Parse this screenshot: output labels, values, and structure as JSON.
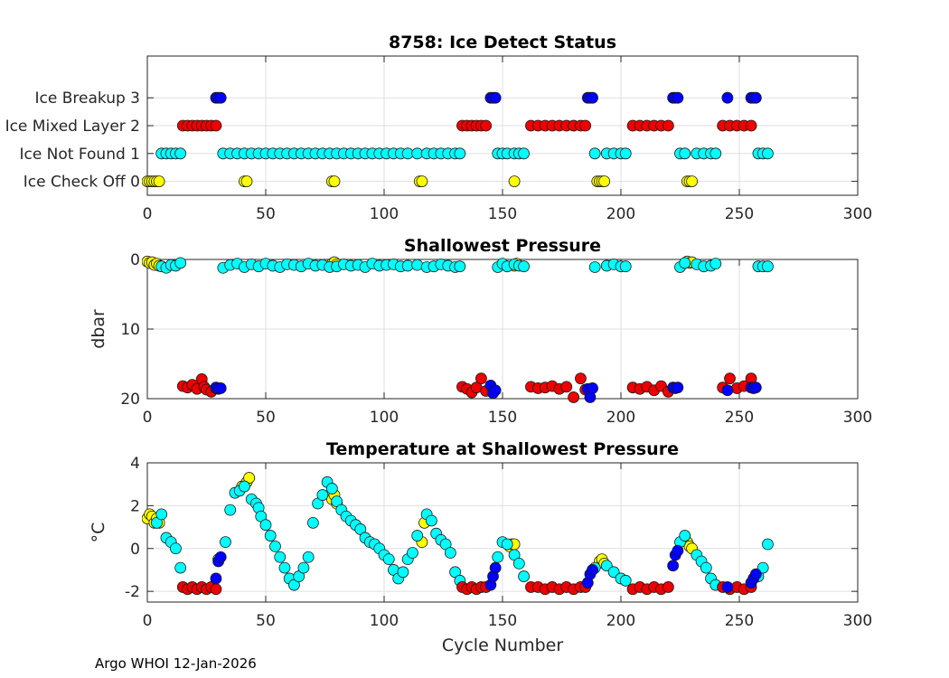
{
  "figure": {
    "footer": "Argo WHOI 12-Jan-2026"
  },
  "colors": {
    "0": "#ffff00",
    "1": "#00ffff",
    "2": "#ee0000",
    "3": "#0000ff"
  },
  "chart_data": [
    {
      "type": "scatter",
      "title": "8758: Ice Detect Status",
      "xlabel": "",
      "ylabel": "",
      "xlim": [
        0,
        300
      ],
      "ylim": [
        -0.5,
        4.5
      ],
      "xticks": [
        0,
        50,
        100,
        150,
        200,
        250,
        300
      ],
      "xtick_labels": [
        "0",
        "50",
        "100",
        "150",
        "200",
        "250",
        "300"
      ],
      "yticks": [
        0,
        1,
        2,
        3
      ],
      "ytick_labels": [
        "Ice Check Off 0",
        "Ice Not Found 1",
        "Ice Mixed Layer 2",
        "Ice Breakup 3"
      ],
      "series": [
        {
          "name": "Ice Check Off 0",
          "color_key": "0",
          "x": [
            0,
            1,
            2,
            3,
            4,
            5,
            41,
            42,
            78,
            79,
            115,
            116,
            155,
            190,
            191,
            192,
            193,
            228,
            229,
            230
          ],
          "y": [
            0,
            0,
            0,
            0,
            0,
            0,
            0,
            0,
            0,
            0,
            0,
            0,
            0,
            0,
            0,
            0,
            0,
            0,
            0,
            0
          ]
        },
        {
          "name": "Ice Not Found 1",
          "color_key": "1",
          "x": [
            6,
            8,
            10,
            12,
            14,
            32,
            35,
            38,
            41,
            44,
            47,
            50,
            53,
            56,
            59,
            62,
            65,
            68,
            71,
            74,
            77,
            80,
            83,
            86,
            89,
            92,
            95,
            98,
            101,
            104,
            107,
            110,
            114,
            118,
            121,
            124,
            127,
            130,
            132,
            148,
            150,
            152,
            155,
            157,
            159,
            189,
            194,
            197,
            200,
            202,
            225,
            227,
            232,
            235,
            238,
            240,
            258,
            260,
            262
          ],
          "y": [
            1,
            1,
            1,
            1,
            1,
            1,
            1,
            1,
            1,
            1,
            1,
            1,
            1,
            1,
            1,
            1,
            1,
            1,
            1,
            1,
            1,
            1,
            1,
            1,
            1,
            1,
            1,
            1,
            1,
            1,
            1,
            1,
            1,
            1,
            1,
            1,
            1,
            1,
            1,
            1,
            1,
            1,
            1,
            1,
            1,
            1,
            1,
            1,
            1,
            1,
            1,
            1,
            1,
            1,
            1,
            1,
            1,
            1,
            1
          ]
        },
        {
          "name": "Ice Mixed Layer 2",
          "color_key": "2",
          "x": [
            15,
            17,
            19,
            21,
            23,
            25,
            27,
            29,
            133,
            135,
            137,
            139,
            141,
            143,
            162,
            165,
            168,
            171,
            174,
            177,
            180,
            183,
            185,
            205,
            208,
            211,
            214,
            217,
            220,
            243,
            246,
            249,
            252,
            255
          ],
          "y": [
            2,
            2,
            2,
            2,
            2,
            2,
            2,
            2,
            2,
            2,
            2,
            2,
            2,
            2,
            2,
            2,
            2,
            2,
            2,
            2,
            2,
            2,
            2,
            2,
            2,
            2,
            2,
            2,
            2,
            2,
            2,
            2,
            2,
            2
          ]
        },
        {
          "name": "Ice Breakup 3",
          "color_key": "3",
          "x": [
            29,
            30,
            31,
            145,
            146,
            147,
            186,
            187,
            188,
            222,
            223,
            224,
            245,
            255,
            256,
            257
          ],
          "y": [
            3,
            3,
            3,
            3,
            3,
            3,
            3,
            3,
            3,
            3,
            3,
            3,
            3,
            3,
            3,
            3
          ]
        }
      ]
    },
    {
      "type": "scatter",
      "title": "Shallowest Pressure",
      "xlabel": "",
      "ylabel": "dbar",
      "xlim": [
        0,
        300
      ],
      "ylim": [
        0,
        20
      ],
      "y_reversed": true,
      "xticks": [
        0,
        50,
        100,
        150,
        200,
        250,
        300
      ],
      "xtick_labels": [
        "0",
        "50",
        "100",
        "150",
        "200",
        "250",
        "300"
      ],
      "yticks": [
        0,
        10,
        20
      ],
      "ytick_labels": [
        "0",
        "10",
        "20"
      ],
      "series": [
        {
          "name": "Ice Check Off 0",
          "color_key": "0",
          "x": [
            0,
            1,
            2,
            3,
            4,
            5,
            78,
            79,
            80,
            155,
            156,
            228,
            229,
            230
          ],
          "y": [
            0.3,
            0.5,
            0.4,
            0.8,
            0.6,
            0.9,
            0.6,
            0.4,
            0.7,
            0.9,
            0.6,
            0.3,
            0.5,
            0.4
          ]
        },
        {
          "name": "Ice Not Found 1",
          "color_key": "1",
          "x": [
            6,
            8,
            10,
            12,
            14,
            32,
            35,
            38,
            41,
            44,
            47,
            50,
            53,
            56,
            59,
            62,
            65,
            68,
            71,
            74,
            77,
            80,
            83,
            86,
            89,
            92,
            95,
            98,
            101,
            104,
            107,
            110,
            114,
            118,
            121,
            124,
            127,
            130,
            132,
            148,
            150,
            152,
            155,
            157,
            159,
            189,
            194,
            197,
            200,
            202,
            225,
            227,
            232,
            235,
            238,
            240,
            258,
            260,
            262
          ],
          "y": [
            1.0,
            1.2,
            0.8,
            0.9,
            0.5,
            1.2,
            0.8,
            0.6,
            1.1,
            0.7,
            1.0,
            0.6,
            0.9,
            1.1,
            0.7,
            0.8,
            1.0,
            0.6,
            0.9,
            0.8,
            1.1,
            1.0,
            0.7,
            0.9,
            0.8,
            1.1,
            0.6,
            0.9,
            0.8,
            0.7,
            1.0,
            0.9,
            0.8,
            1.1,
            1.0,
            0.7,
            0.9,
            1.1,
            1.0,
            1.1,
            0.6,
            1.0,
            0.7,
            0.9,
            1.0,
            1.1,
            0.9,
            0.7,
            1.0,
            1.0,
            1.1,
            0.5,
            0.7,
            1.0,
            0.9,
            0.6,
            1.0,
            1.0,
            1.0
          ]
        },
        {
          "name": "Ice Mixed Layer 2",
          "color_key": "2",
          "x": [
            15,
            17,
            19,
            21,
            23,
            24,
            25,
            27,
            29,
            133,
            135,
            137,
            139,
            141,
            143,
            162,
            165,
            168,
            171,
            174,
            177,
            180,
            183,
            185,
            205,
            208,
            211,
            214,
            217,
            220,
            243,
            246,
            249,
            252,
            255
          ],
          "y": [
            18.2,
            18.4,
            18.0,
            18.6,
            17.2,
            18.3,
            18.7,
            19.0,
            18.5,
            18.3,
            18.6,
            19.1,
            18.4,
            17.1,
            18.9,
            18.3,
            18.5,
            18.4,
            18.2,
            18.6,
            18.3,
            19.8,
            17.1,
            18.7,
            18.4,
            18.6,
            18.3,
            18.8,
            18.2,
            19.0,
            18.4,
            17.1,
            18.5,
            18.2,
            17.1
          ]
        },
        {
          "name": "Ice Breakup 3",
          "color_key": "3",
          "x": [
            29,
            30,
            31,
            145,
            146,
            147,
            186,
            187,
            188,
            222,
            223,
            224,
            245,
            255,
            256,
            257
          ],
          "y": [
            18.4,
            18.6,
            18.5,
            18.1,
            19.2,
            18.8,
            18.6,
            19.8,
            18.5,
            18.4,
            18.5,
            18.4,
            18.8,
            18.4,
            18.5,
            18.4
          ]
        }
      ]
    },
    {
      "type": "scatter",
      "title": "Temperature at Shallowest Pressure",
      "xlabel": "Cycle Number",
      "ylabel": "°C",
      "xlim": [
        0,
        300
      ],
      "ylim": [
        -2.5,
        4
      ],
      "xticks": [
        0,
        50,
        100,
        150,
        200,
        250,
        300
      ],
      "xtick_labels": [
        "0",
        "50",
        "100",
        "150",
        "200",
        "250",
        "300"
      ],
      "yticks": [
        -2,
        0,
        2,
        4
      ],
      "ytick_labels": [
        "-2",
        "0",
        "2",
        "4"
      ],
      "series": [
        {
          "name": "Ice Check Off 0",
          "color_key": "0",
          "x": [
            0,
            1,
            2,
            3,
            4,
            5,
            40,
            42,
            43,
            78,
            79,
            80,
            116,
            117,
            153,
            154,
            155,
            191,
            192,
            193,
            228,
            229,
            230
          ],
          "y": [
            1.4,
            1.6,
            1.5,
            1.2,
            1.4,
            1.2,
            2.9,
            3.1,
            3.3,
            2.3,
            2.5,
            2.1,
            0.3,
            1.2,
            0.1,
            0.2,
            0.2,
            -0.6,
            -0.5,
            -0.7,
            0.3,
            0.1,
            0.0
          ]
        },
        {
          "name": "Ice Not Found 1",
          "color_key": "1",
          "x": [
            4,
            6,
            8,
            10,
            12,
            14,
            30,
            33,
            35,
            37,
            39,
            41,
            44,
            46,
            47,
            48,
            50,
            52,
            54,
            56,
            58,
            60,
            62,
            64,
            66,
            68,
            70,
            72,
            74,
            76,
            78,
            80,
            82,
            84,
            86,
            88,
            90,
            92,
            94,
            96,
            98,
            100,
            102,
            104,
            106,
            108,
            110,
            112,
            114,
            118,
            120,
            122,
            124,
            126,
            128,
            130,
            132,
            148,
            150,
            152,
            155,
            157,
            159,
            189,
            194,
            197,
            200,
            202,
            225,
            227,
            232,
            234,
            236,
            238,
            240,
            258,
            260,
            262
          ],
          "y": [
            1.2,
            1.6,
            0.5,
            0.3,
            0.0,
            -0.9,
            -0.5,
            0.3,
            1.8,
            2.6,
            2.7,
            2.9,
            2.3,
            2.1,
            1.9,
            1.5,
            1.1,
            0.6,
            0.1,
            -0.4,
            -0.9,
            -1.4,
            -1.7,
            -1.3,
            -0.9,
            -0.4,
            1.2,
            2.1,
            2.5,
            3.1,
            2.8,
            2.2,
            1.8,
            1.5,
            1.3,
            1.1,
            0.9,
            0.5,
            0.3,
            0.2,
            0.0,
            -0.3,
            -0.5,
            -1.0,
            -1.4,
            -1.1,
            -0.5,
            -0.2,
            0.6,
            1.6,
            1.3,
            0.7,
            0.4,
            0.2,
            -0.2,
            -1.1,
            -1.5,
            -0.4,
            0.3,
            0.2,
            -0.3,
            -0.7,
            -1.3,
            -0.9,
            -0.8,
            -1.1,
            -1.4,
            -1.5,
            0.3,
            0.6,
            -0.3,
            -0.6,
            -0.9,
            -1.4,
            -1.7,
            -1.3,
            -0.9,
            0.2
          ]
        },
        {
          "name": "Ice Mixed Layer 2",
          "color_key": "2",
          "x": [
            15,
            17,
            19,
            21,
            23,
            25,
            27,
            29,
            133,
            135,
            137,
            139,
            141,
            143,
            162,
            165,
            168,
            171,
            174,
            177,
            180,
            183,
            185,
            205,
            208,
            211,
            214,
            217,
            220,
            243,
            246,
            249,
            252,
            255
          ],
          "y": [
            -1.8,
            -1.9,
            -1.8,
            -1.9,
            -1.8,
            -1.9,
            -1.8,
            -1.9,
            -1.8,
            -1.9,
            -1.8,
            -1.9,
            -1.8,
            -1.8,
            -1.8,
            -1.8,
            -1.9,
            -1.8,
            -1.9,
            -1.8,
            -1.9,
            -1.8,
            -1.8,
            -1.9,
            -1.8,
            -1.9,
            -1.8,
            -1.9,
            -1.8,
            -1.8,
            -1.9,
            -1.8,
            -1.9,
            -1.8
          ]
        },
        {
          "name": "Ice Breakup 3",
          "color_key": "3",
          "x": [
            29,
            30,
            31,
            145,
            146,
            147,
            186,
            187,
            188,
            222,
            223,
            224,
            245,
            255,
            256,
            257
          ],
          "y": [
            -1.4,
            -0.6,
            -0.4,
            -1.7,
            -1.3,
            -0.9,
            -1.6,
            -1.2,
            -1.0,
            -0.8,
            -0.3,
            -0.1,
            -1.8,
            -1.6,
            -1.4,
            -1.2
          ]
        }
      ]
    }
  ]
}
